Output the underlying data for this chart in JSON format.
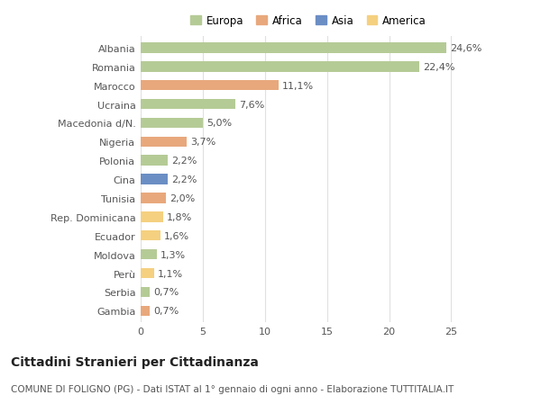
{
  "categories": [
    "Albania",
    "Romania",
    "Marocco",
    "Ucraina",
    "Macedonia d/N.",
    "Nigeria",
    "Polonia",
    "Cina",
    "Tunisia",
    "Rep. Dominicana",
    "Ecuador",
    "Moldova",
    "Perù",
    "Serbia",
    "Gambia"
  ],
  "values": [
    24.6,
    22.4,
    11.1,
    7.6,
    5.0,
    3.7,
    2.2,
    2.2,
    2.0,
    1.8,
    1.6,
    1.3,
    1.1,
    0.7,
    0.7
  ],
  "labels": [
    "24,6%",
    "22,4%",
    "11,1%",
    "7,6%",
    "5,0%",
    "3,7%",
    "2,2%",
    "2,2%",
    "2,0%",
    "1,8%",
    "1,6%",
    "1,3%",
    "1,1%",
    "0,7%",
    "0,7%"
  ],
  "colors": [
    "#b5cb96",
    "#b5cb96",
    "#e8a87c",
    "#b5cb96",
    "#b5cb96",
    "#e8a87c",
    "#b5cb96",
    "#6b8ec4",
    "#e8a87c",
    "#f5d080",
    "#f5d080",
    "#b5cb96",
    "#f5d080",
    "#b5cb96",
    "#e8a87c"
  ],
  "continent_colors": {
    "Europa": "#b5cb96",
    "Africa": "#e8a87c",
    "Asia": "#6b8ec4",
    "America": "#f5d080"
  },
  "title": "Cittadini Stranieri per Cittadinanza",
  "subtitle": "COMUNE DI FOLIGNO (PG) - Dati ISTAT al 1° gennaio di ogni anno - Elaborazione TUTTITALIA.IT",
  "xlim": [
    0,
    27
  ],
  "xticks": [
    0,
    5,
    10,
    15,
    20,
    25
  ],
  "background_color": "#ffffff",
  "grid_color": "#e0e0e0",
  "bar_height": 0.55,
  "title_fontsize": 10,
  "subtitle_fontsize": 7.5,
  "label_fontsize": 8,
  "tick_fontsize": 8,
  "legend_fontsize": 8.5,
  "label_color": "#555555",
  "tick_color": "#555555"
}
